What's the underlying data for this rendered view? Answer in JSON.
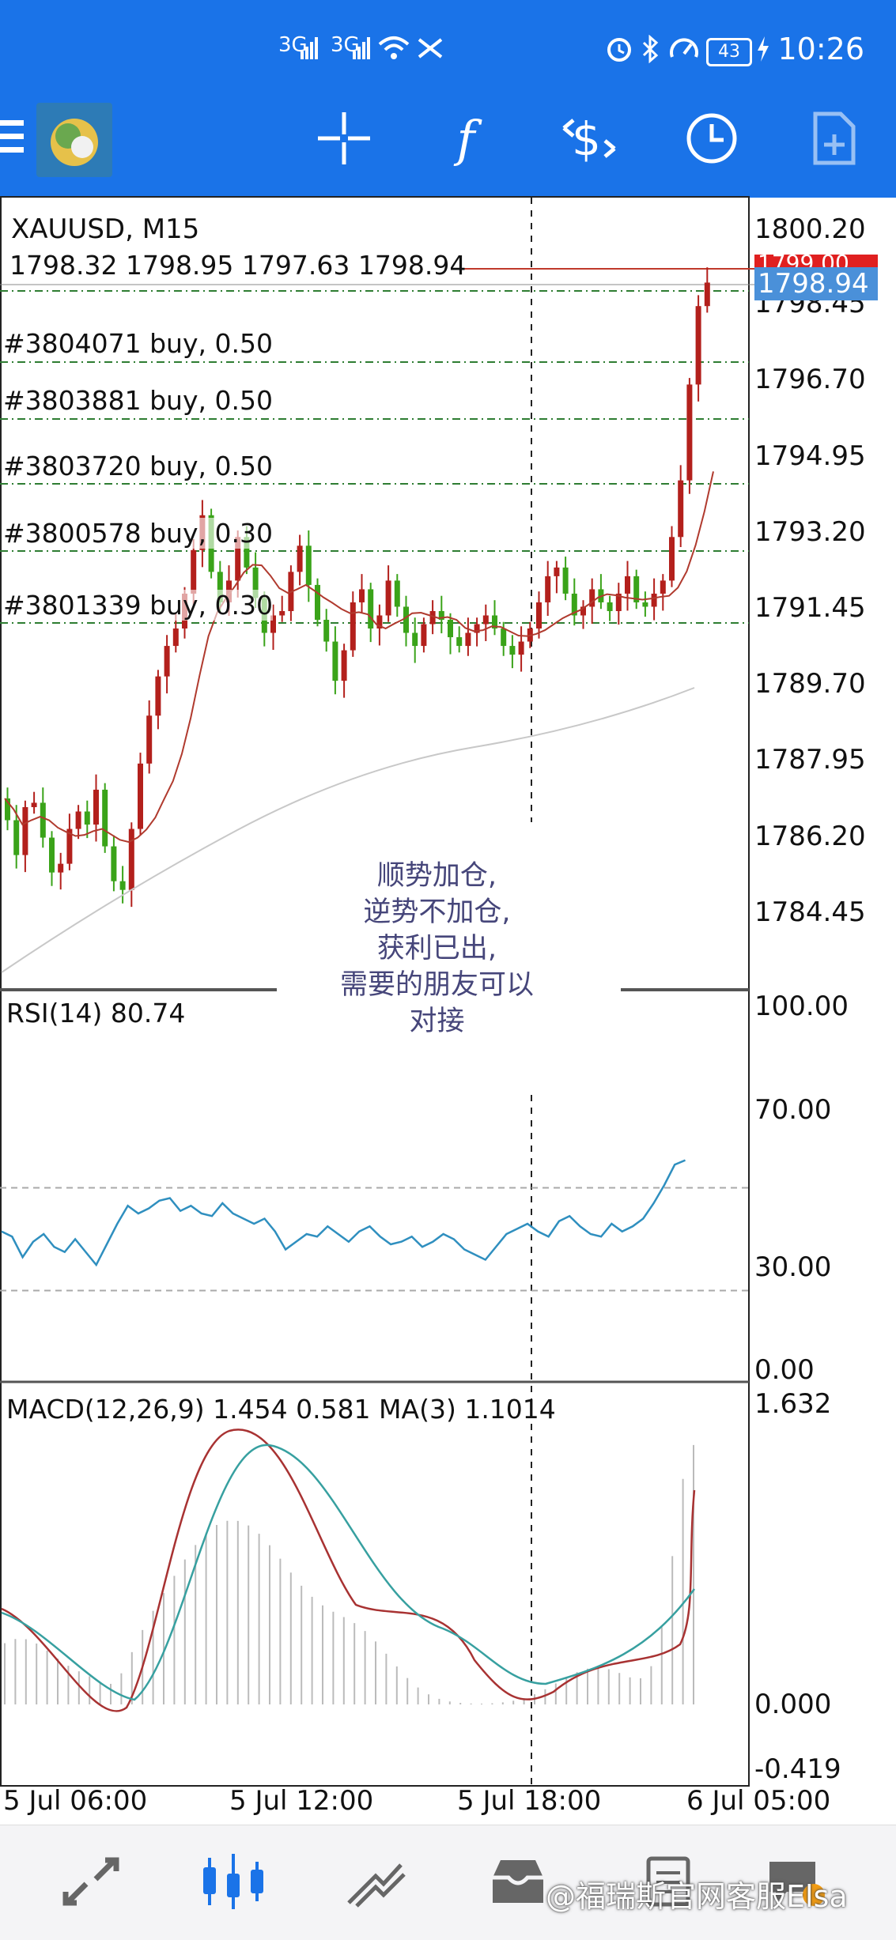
{
  "status_bar": {
    "network1": "3G",
    "network2": "3G",
    "battery": "43",
    "time": "10:26"
  },
  "header": {
    "symbol_timeframe": "XAUUSD, M15",
    "ohlc": "1798.32 1798.95 1797.63 1798.94"
  },
  "price_axis": [
    "1800.20",
    "1798.45",
    "1796.70",
    "1794.95",
    "1793.20",
    "1791.45",
    "1789.70",
    "1787.95",
    "1786.20",
    "1784.45"
  ],
  "price_tags": {
    "upper": "1799.00",
    "current": "1798.94"
  },
  "orders": [
    "#3804071 buy, 0.50",
    "#3803881 buy, 0.50",
    "#3803720 buy, 0.50",
    "#3800578 buy, 0.30",
    "#3801339 buy, 0.30"
  ],
  "note": [
    "顺势加仓,",
    "逆势不加仓,",
    "获利已出,",
    "需要的朋友可以",
    "对接"
  ],
  "rsi": {
    "label": "RSI(14) 80.74",
    "axis": [
      "100.00",
      "70.00",
      "30.00",
      "0.00"
    ]
  },
  "macd": {
    "label": "MACD(12,26,9) 1.454 0.581 MA(3) 1.1014",
    "axis": [
      "1.632",
      "0.000",
      "-0.419"
    ]
  },
  "time_axis": [
    "5 Jul 06:00",
    "5 Jul 12:00",
    "5 Jul 18:00",
    "6 Jul 05:00"
  ],
  "watermark": "@福瑞斯官网客服Elsa",
  "colors": {
    "bull": "#3aa319",
    "bear": "#b3201c",
    "accent": "#1a73e8",
    "rsi_line": "#2f8fbf"
  }
}
